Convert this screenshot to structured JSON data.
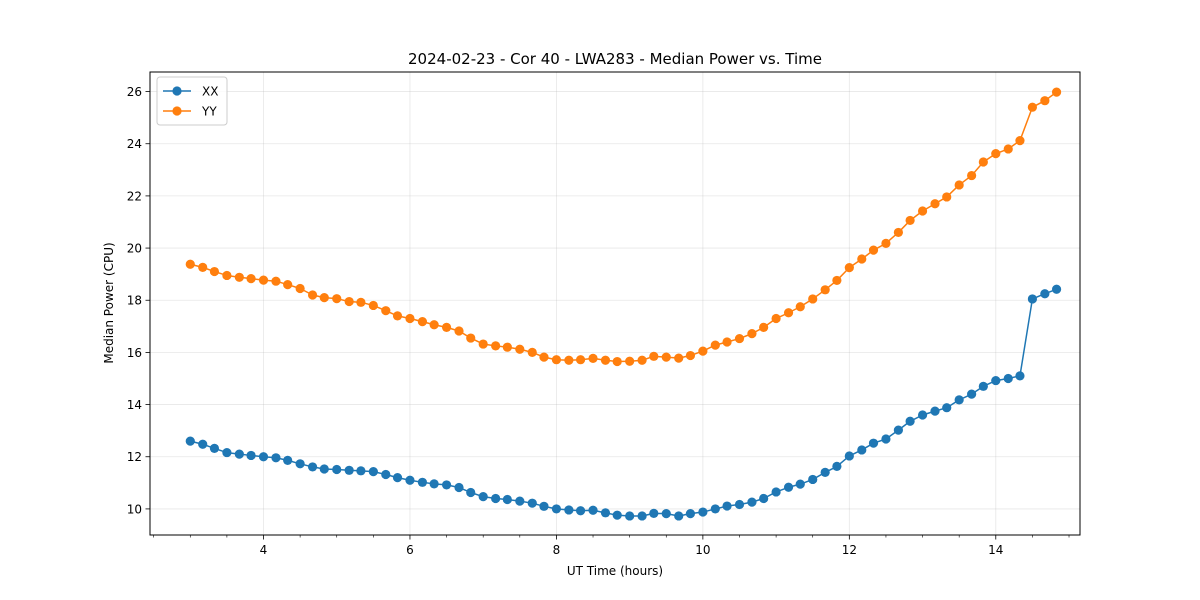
{
  "chart_data": {
    "type": "line",
    "title": "2024-02-23 - Cor 40 - LWA283 - Median Power vs. Time",
    "xlabel": "UT Time (hours)",
    "ylabel": "Median Power (CPU)",
    "xlim": [
      2.45,
      15.15
    ],
    "ylim": [
      9.0,
      26.75
    ],
    "x_ticks": [
      4,
      6,
      8,
      10,
      12,
      14
    ],
    "x_minor_step": 0.5,
    "y_ticks": [
      10,
      12,
      14,
      16,
      18,
      20,
      22,
      24,
      26
    ],
    "grid": true,
    "legend_position": "top-left",
    "x": [
      3.0,
      3.17,
      3.33,
      3.5,
      3.67,
      3.83,
      4.0,
      4.17,
      4.33,
      4.5,
      4.67,
      4.83,
      5.0,
      5.17,
      5.33,
      5.5,
      5.67,
      5.83,
      6.0,
      6.17,
      6.33,
      6.5,
      6.67,
      6.83,
      7.0,
      7.17,
      7.33,
      7.5,
      7.67,
      7.83,
      8.0,
      8.17,
      8.33,
      8.5,
      8.67,
      8.83,
      9.0,
      9.17,
      9.33,
      9.5,
      9.67,
      9.83,
      10.0,
      10.17,
      10.33,
      10.5,
      10.67,
      10.83,
      11.0,
      11.17,
      11.33,
      11.5,
      11.67,
      11.83,
      12.0,
      12.17,
      12.33,
      12.5,
      12.67,
      12.83,
      13.0,
      13.17,
      13.33,
      13.5,
      13.67,
      13.83,
      14.0,
      14.17,
      14.33,
      14.5,
      14.67,
      14.83
    ],
    "series": [
      {
        "name": "XX",
        "color": "#1f77b4",
        "values": [
          12.6,
          12.48,
          12.32,
          12.16,
          12.1,
          12.05,
          12.0,
          11.96,
          11.86,
          11.73,
          11.61,
          11.53,
          11.51,
          11.48,
          11.46,
          11.43,
          11.32,
          11.2,
          11.1,
          11.02,
          10.96,
          10.92,
          10.82,
          10.63,
          10.47,
          10.4,
          10.36,
          10.3,
          10.22,
          10.1,
          10.0,
          9.96,
          9.93,
          9.95,
          9.85,
          9.76,
          9.73,
          9.73,
          9.83,
          9.82,
          9.73,
          9.82,
          9.88,
          10.0,
          10.11,
          10.17,
          10.26,
          10.4,
          10.65,
          10.83,
          10.95,
          11.13,
          11.4,
          11.63,
          12.03,
          12.26,
          12.52,
          12.68,
          13.02,
          13.36,
          13.6,
          13.75,
          13.88,
          14.18,
          14.4,
          14.7,
          14.92,
          15.0,
          15.1,
          18.05,
          18.25,
          18.42
        ]
      },
      {
        "name": "YY",
        "color": "#ff7f0e",
        "values": [
          19.38,
          19.26,
          19.1,
          18.95,
          18.88,
          18.83,
          18.77,
          18.73,
          18.6,
          18.45,
          18.2,
          18.1,
          18.06,
          17.95,
          17.92,
          17.8,
          17.6,
          17.4,
          17.3,
          17.18,
          17.06,
          16.96,
          16.82,
          16.55,
          16.32,
          16.25,
          16.2,
          16.12,
          16.0,
          15.82,
          15.72,
          15.7,
          15.72,
          15.77,
          15.7,
          15.65,
          15.66,
          15.7,
          15.85,
          15.82,
          15.78,
          15.88,
          16.05,
          16.28,
          16.4,
          16.53,
          16.72,
          16.96,
          17.3,
          17.52,
          17.75,
          18.05,
          18.4,
          18.76,
          19.25,
          19.58,
          19.92,
          20.18,
          20.6,
          21.06,
          21.42,
          21.7,
          21.96,
          22.42,
          22.78,
          23.3,
          23.62,
          23.8,
          24.12,
          25.4,
          25.65,
          25.98
        ]
      }
    ]
  }
}
